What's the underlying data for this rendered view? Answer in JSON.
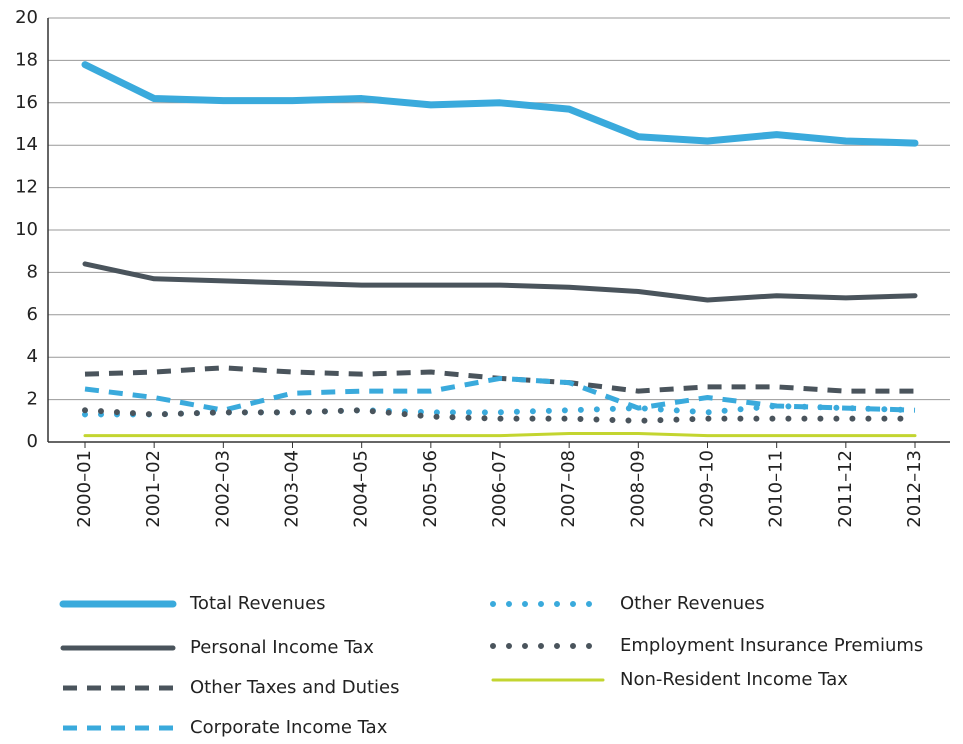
{
  "chart_data": {
    "type": "line",
    "categories": [
      "2000–01",
      "2001–02",
      "2002–03",
      "2003–04",
      "2004–05",
      "2005–06",
      "2006–07",
      "2007–08",
      "2008–09",
      "2009–10",
      "2010–11",
      "2011–12",
      "2012–13"
    ],
    "ylim": [
      0,
      20
    ],
    "yticks": [
      0,
      2,
      4,
      6,
      8,
      10,
      12,
      14,
      16,
      18,
      20
    ],
    "grid": true,
    "series": [
      {
        "name": "Total Revenues",
        "color": "#3aaadc",
        "style": "solid",
        "values": [
          17.8,
          16.2,
          16.1,
          16.1,
          16.2,
          15.9,
          16.0,
          15.7,
          14.4,
          14.2,
          14.5,
          14.2,
          14.1
        ]
      },
      {
        "name": "Personal Income Tax",
        "color": "#4a545c",
        "style": "solid",
        "values": [
          8.4,
          7.7,
          7.6,
          7.5,
          7.4,
          7.4,
          7.4,
          7.3,
          7.1,
          6.7,
          6.9,
          6.8,
          6.9
        ]
      },
      {
        "name": "Other Taxes and Duties",
        "color": "#4a545c",
        "style": "dashed",
        "values": [
          3.2,
          3.3,
          3.5,
          3.3,
          3.2,
          3.3,
          3.0,
          2.8,
          2.4,
          2.6,
          2.6,
          2.4,
          2.4
        ]
      },
      {
        "name": "Corporate Income Tax",
        "color": "#3aaadc",
        "style": "dashed",
        "values": [
          2.5,
          2.1,
          1.5,
          2.3,
          2.4,
          2.4,
          3.0,
          2.8,
          1.6,
          2.1,
          1.7,
          1.6,
          1.5
        ]
      },
      {
        "name": "Other Revenues",
        "color": "#3aaadc",
        "style": "dotted",
        "values": [
          1.3,
          1.3,
          1.4,
          1.4,
          1.5,
          1.4,
          1.4,
          1.5,
          1.6,
          1.4,
          1.7,
          1.6,
          1.5
        ]
      },
      {
        "name": "Employment Insurance Premiums",
        "color": "#4a545c",
        "style": "dotted",
        "values": [
          1.5,
          1.3,
          1.4,
          1.4,
          1.5,
          1.2,
          1.1,
          1.1,
          1.0,
          1.1,
          1.1,
          1.1,
          1.1
        ]
      },
      {
        "name": "Non-Resident Income Tax",
        "color": "#c3d530",
        "style": "solid",
        "values": [
          0.3,
          0.3,
          0.3,
          0.3,
          0.3,
          0.3,
          0.3,
          0.4,
          0.4,
          0.3,
          0.3,
          0.3,
          0.3
        ]
      }
    ]
  }
}
